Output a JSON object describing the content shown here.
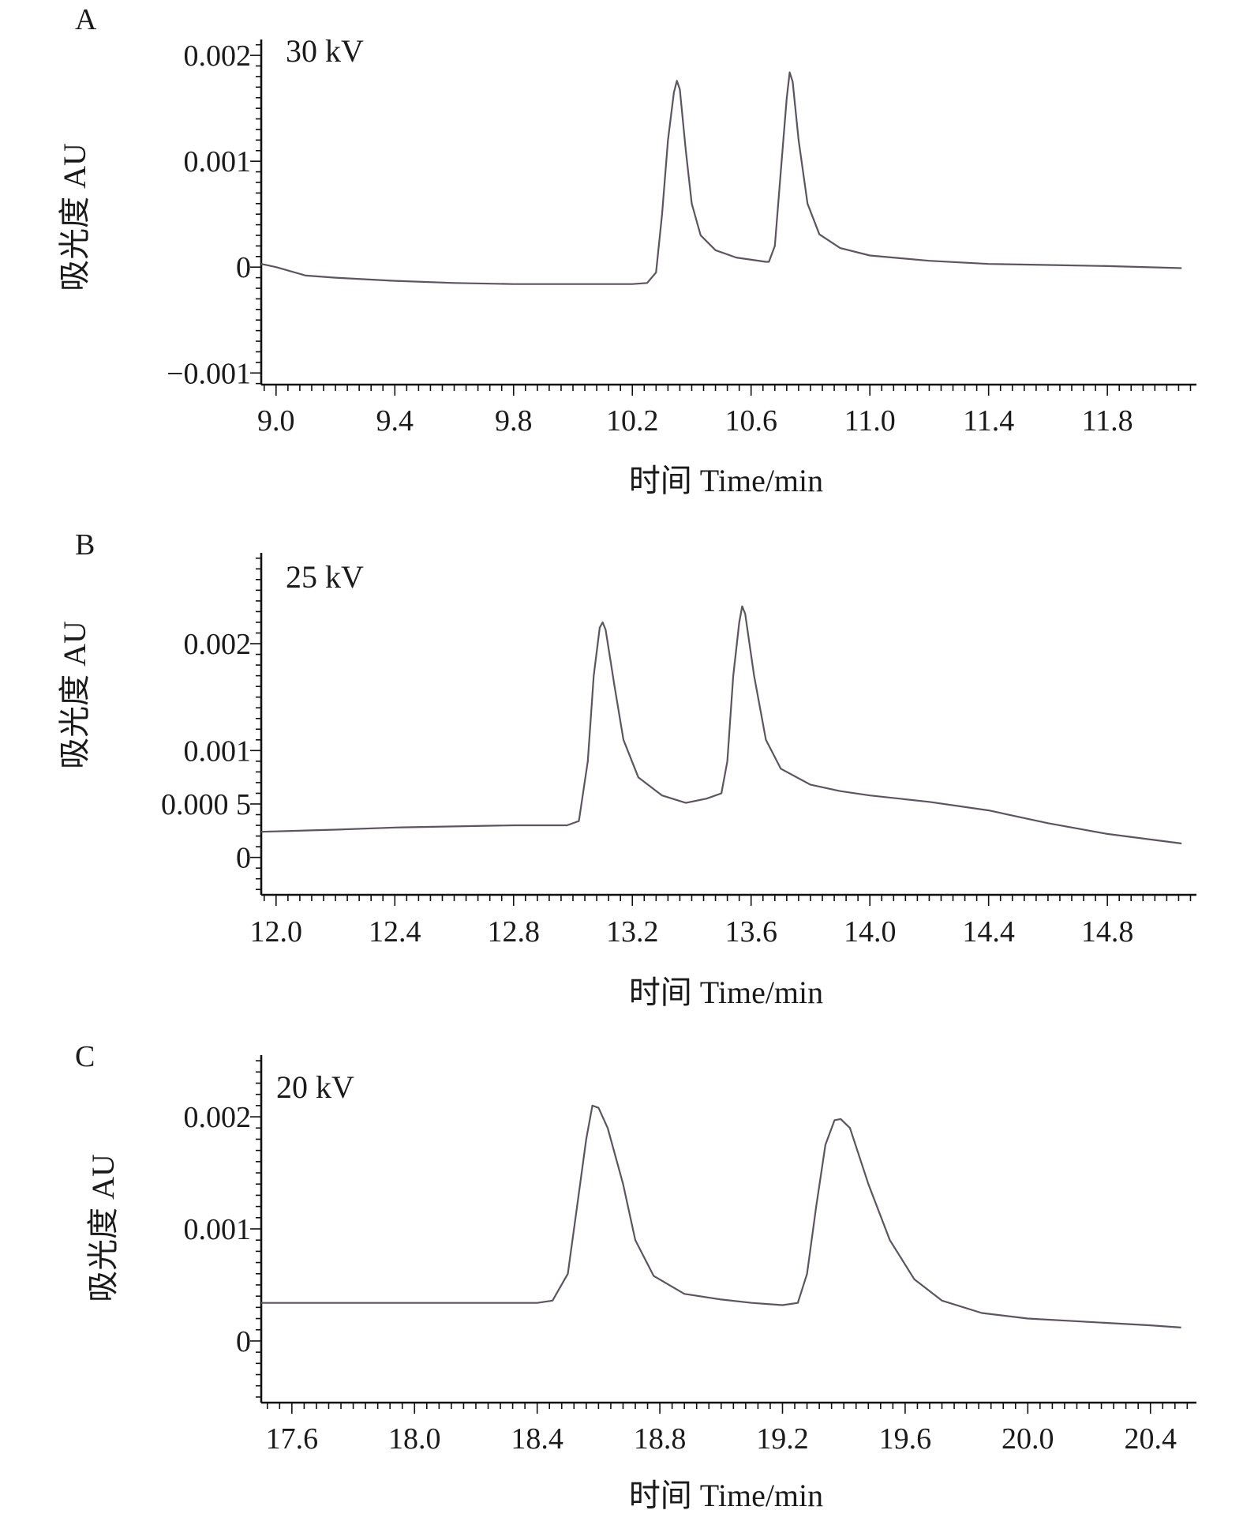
{
  "chart_data": [
    {
      "type": "line",
      "panel_label": "A",
      "condition_label": "30 kV",
      "xlabel": "时间 Time/min",
      "ylabel": "吸光度 AU",
      "xlim": [
        8.95,
        12.1
      ],
      "ylim": [
        -0.00111,
        0.00215
      ],
      "x_ticks": [
        "9.0",
        "9.4",
        "9.8",
        "10.2",
        "10.6",
        "11.0",
        "11.4",
        "11.8"
      ],
      "x_tick_values": [
        9.0,
        9.4,
        9.8,
        10.2,
        10.6,
        11.0,
        11.4,
        11.8
      ],
      "y_ticks": [
        "0.002",
        "0.001",
        "0",
        "−0.001"
      ],
      "y_tick_values": [
        0.002,
        0.001,
        0.0,
        -0.001
      ],
      "series": [
        {
          "color": "#5c5560",
          "points": [
            [
              8.95,
              3e-05
            ],
            [
              9.0,
              0.0
            ],
            [
              9.1,
              -8e-05
            ],
            [
              9.2,
              -0.0001
            ],
            [
              9.4,
              -0.00013
            ],
            [
              9.6,
              -0.00015
            ],
            [
              9.8,
              -0.00016
            ],
            [
              10.0,
              -0.00016
            ],
            [
              10.2,
              -0.00016
            ],
            [
              10.25,
              -0.00015
            ],
            [
              10.28,
              -5e-05
            ],
            [
              10.3,
              0.0005
            ],
            [
              10.32,
              0.0012
            ],
            [
              10.34,
              0.00165
            ],
            [
              10.35,
              0.00176
            ],
            [
              10.36,
              0.00168
            ],
            [
              10.38,
              0.0011
            ],
            [
              10.4,
              0.0006
            ],
            [
              10.43,
              0.0003
            ],
            [
              10.48,
              0.00016
            ],
            [
              10.55,
              9e-05
            ],
            [
              10.65,
              5e-05
            ],
            [
              10.66,
              5e-05
            ],
            [
              10.68,
              0.0002
            ],
            [
              10.7,
              0.0009
            ],
            [
              10.72,
              0.0016
            ],
            [
              10.73,
              0.00184
            ],
            [
              10.74,
              0.00175
            ],
            [
              10.76,
              0.0012
            ],
            [
              10.79,
              0.0006
            ],
            [
              10.83,
              0.00031
            ],
            [
              10.9,
              0.00018
            ],
            [
              11.0,
              0.00011
            ],
            [
              11.2,
              6e-05
            ],
            [
              11.4,
              3e-05
            ],
            [
              11.6,
              2e-05
            ],
            [
              11.8,
              1e-05
            ],
            [
              12.05,
              -1e-05
            ]
          ]
        }
      ]
    },
    {
      "type": "line",
      "panel_label": "B",
      "condition_label": "25 kV",
      "xlabel": "时间 Time/min",
      "ylabel": "吸光度 AU",
      "xlim": [
        11.95,
        15.1
      ],
      "ylim": [
        -0.00035,
        0.00285
      ],
      "x_ticks": [
        "12.0",
        "12.4",
        "12.8",
        "13.2",
        "13.6",
        "14.0",
        "14.4",
        "14.8"
      ],
      "x_tick_values": [
        12.0,
        12.4,
        12.8,
        13.2,
        13.6,
        14.0,
        14.4,
        14.8
      ],
      "y_ticks": [
        "0.002",
        "0.001",
        "0.000 5",
        "0"
      ],
      "y_tick_values": [
        0.002,
        0.001,
        0.0005,
        0.0
      ],
      "series": [
        {
          "color": "#5c5560",
          "points": [
            [
              11.95,
              0.00024
            ],
            [
              12.2,
              0.00026
            ],
            [
              12.4,
              0.00028
            ],
            [
              12.6,
              0.00029
            ],
            [
              12.8,
              0.0003
            ],
            [
              12.98,
              0.0003
            ],
            [
              13.02,
              0.00034
            ],
            [
              13.05,
              0.0009
            ],
            [
              13.07,
              0.0017
            ],
            [
              13.09,
              0.00215
            ],
            [
              13.1,
              0.0022
            ],
            [
              13.11,
              0.00213
            ],
            [
              13.14,
              0.0016
            ],
            [
              13.17,
              0.0011
            ],
            [
              13.22,
              0.00075
            ],
            [
              13.3,
              0.00058
            ],
            [
              13.38,
              0.00051
            ],
            [
              13.45,
              0.00055
            ],
            [
              13.5,
              0.0006
            ],
            [
              13.52,
              0.0009
            ],
            [
              13.54,
              0.0017
            ],
            [
              13.56,
              0.0022
            ],
            [
              13.57,
              0.00235
            ],
            [
              13.58,
              0.00228
            ],
            [
              13.61,
              0.0017
            ],
            [
              13.65,
              0.0011
            ],
            [
              13.7,
              0.00083
            ],
            [
              13.8,
              0.00068
            ],
            [
              13.9,
              0.00062
            ],
            [
              14.0,
              0.00058
            ],
            [
              14.2,
              0.00052
            ],
            [
              14.4,
              0.00044
            ],
            [
              14.6,
              0.00032
            ],
            [
              14.8,
              0.00022
            ],
            [
              15.05,
              0.00013
            ]
          ]
        }
      ]
    },
    {
      "type": "line",
      "panel_label": "C",
      "condition_label": "20 kV",
      "xlabel": "时间 Time/min",
      "ylabel": "吸光度 AU",
      "xlim": [
        17.5,
        20.55
      ],
      "ylim": [
        -0.00055,
        0.00255
      ],
      "x_ticks": [
        "17.6",
        "18.0",
        "18.4",
        "18.8",
        "19.2",
        "19.6",
        "20.0",
        "20.4"
      ],
      "x_tick_values": [
        17.6,
        18.0,
        18.4,
        18.8,
        19.2,
        19.6,
        20.0,
        20.4
      ],
      "y_ticks": [
        "0.002",
        "0.001",
        "0"
      ],
      "y_tick_values": [
        0.002,
        0.001,
        0.0
      ],
      "series": [
        {
          "color": "#5c5560",
          "points": [
            [
              17.5,
              0.00034
            ],
            [
              17.7,
              0.00034
            ],
            [
              18.0,
              0.00034
            ],
            [
              18.2,
              0.00034
            ],
            [
              18.4,
              0.00034
            ],
            [
              18.45,
              0.00036
            ],
            [
              18.5,
              0.0006
            ],
            [
              18.53,
              0.0012
            ],
            [
              18.56,
              0.0018
            ],
            [
              18.58,
              0.0021
            ],
            [
              18.6,
              0.00208
            ],
            [
              18.63,
              0.0019
            ],
            [
              18.68,
              0.0014
            ],
            [
              18.72,
              0.0009
            ],
            [
              18.78,
              0.00058
            ],
            [
              18.88,
              0.00042
            ],
            [
              19.0,
              0.00037
            ],
            [
              19.1,
              0.00034
            ],
            [
              19.2,
              0.00032
            ],
            [
              19.25,
              0.00034
            ],
            [
              19.28,
              0.0006
            ],
            [
              19.31,
              0.0012
            ],
            [
              19.34,
              0.00175
            ],
            [
              19.37,
              0.00197
            ],
            [
              19.39,
              0.00198
            ],
            [
              19.42,
              0.0019
            ],
            [
              19.48,
              0.0014
            ],
            [
              19.55,
              0.0009
            ],
            [
              19.63,
              0.00055
            ],
            [
              19.72,
              0.00036
            ],
            [
              19.85,
              0.00025
            ],
            [
              20.0,
              0.0002
            ],
            [
              20.2,
              0.00017
            ],
            [
              20.4,
              0.00014
            ],
            [
              20.5,
              0.00012
            ]
          ]
        }
      ]
    }
  ]
}
